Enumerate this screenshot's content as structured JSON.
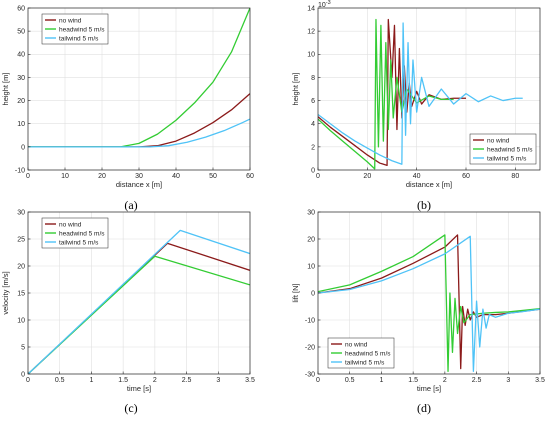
{
  "colors": {
    "no_wind": "#8B1A1A",
    "headwind": "#33CC33",
    "tailwind": "#4FC3F7",
    "grid": "#E0E0E0",
    "axis": "#262626"
  },
  "chart_data": [
    {
      "panel": "(a)",
      "type": "line",
      "xlabel": "distance x [m]",
      "ylabel": "height [m]",
      "xlim": [
        0,
        60
      ],
      "ylim": [
        -10,
        60
      ],
      "xticks": [
        0,
        10,
        20,
        30,
        40,
        50,
        60
      ],
      "yticks": [
        -10,
        0,
        10,
        20,
        30,
        40,
        50,
        60
      ],
      "grid": true,
      "legend": "top-left",
      "series": [
        {
          "name": "no wind",
          "x": [
            0,
            30,
            35,
            40,
            45,
            50,
            55,
            60
          ],
          "y": [
            0,
            0,
            0.5,
            2.5,
            6,
            10.5,
            16,
            23
          ]
        },
        {
          "name": "headwind 5 m/s",
          "x": [
            0,
            25,
            30,
            35,
            40,
            45,
            50,
            55,
            60
          ],
          "y": [
            0,
            0,
            1.5,
            5.5,
            11.5,
            19,
            28,
            41,
            60
          ]
        },
        {
          "name": "tailwind 5 m/s",
          "x": [
            0,
            33,
            38,
            43,
            48,
            53,
            58,
            60
          ],
          "y": [
            0,
            0,
            0.5,
            2,
            4.2,
            7,
            10.5,
            12
          ]
        }
      ]
    },
    {
      "panel": "(b)",
      "type": "line",
      "xlabel": "distance x [m]",
      "ylabel": "height [m]",
      "exponent_label": "10",
      "exponent_power": "-3",
      "xlim": [
        0,
        90
      ],
      "ylim": [
        0,
        14
      ],
      "xticks": [
        0,
        20,
        40,
        60,
        80
      ],
      "yticks": [
        0,
        2,
        4,
        6,
        8,
        10,
        12,
        14
      ],
      "grid": true,
      "legend": "bottom-right",
      "series": [
        {
          "name": "no wind",
          "x": [
            0,
            5,
            10,
            15,
            20,
            25,
            28,
            28.5,
            30,
            31,
            32,
            33,
            34,
            35,
            36,
            37,
            38,
            40,
            42,
            45,
            50,
            55,
            60
          ],
          "y": [
            4.6,
            3.7,
            2.9,
            2.1,
            1.3,
            0.6,
            0.4,
            13,
            8,
            12.5,
            3.5,
            10.5,
            4.5,
            9,
            5,
            7.5,
            5.5,
            6.8,
            5.7,
            6.5,
            6.1,
            6.2,
            6.2
          ]
        },
        {
          "name": "headwind 5 m/s",
          "x": [
            0,
            5,
            10,
            15,
            20,
            23,
            23.5,
            24.5,
            25.5,
            26.5,
            27.5,
            28.5,
            29.5,
            30.5,
            32,
            34,
            36,
            40,
            45,
            50,
            55
          ],
          "y": [
            4.4,
            3.4,
            2.5,
            1.6,
            0.7,
            0.1,
            13,
            2,
            12.5,
            2.5,
            11,
            3.5,
            9.5,
            4.5,
            8,
            5,
            7,
            5.8,
            6.4,
            6.1,
            6.1
          ]
        },
        {
          "name": "tailwind 5 m/s",
          "x": [
            0,
            5,
            10,
            15,
            20,
            25,
            30,
            34,
            34.5,
            35.5,
            36.5,
            37.5,
            38.5,
            40,
            42,
            45,
            50,
            55,
            60,
            65,
            70,
            75,
            80,
            83
          ],
          "y": [
            4.8,
            4.0,
            3.2,
            2.5,
            1.9,
            1.3,
            0.8,
            0.5,
            12.7,
            3,
            11,
            4,
            9.5,
            5,
            8,
            5.5,
            7,
            5.7,
            6.6,
            5.9,
            6.4,
            6.0,
            6.2,
            6.2
          ]
        }
      ]
    },
    {
      "panel": "(c)",
      "type": "line",
      "xlabel": "time [s]",
      "ylabel": "velocity [m/s]",
      "xlim": [
        0,
        3.5
      ],
      "ylim": [
        0,
        30
      ],
      "xticks": [
        0,
        0.5,
        1,
        1.5,
        2,
        2.5,
        3,
        3.5
      ],
      "yticks": [
        0,
        5,
        10,
        15,
        20,
        25,
        30
      ],
      "grid": true,
      "legend": "top-left",
      "series": [
        {
          "name": "no wind",
          "x": [
            0,
            2.2,
            3.5
          ],
          "y": [
            0,
            24.2,
            19.2
          ]
        },
        {
          "name": "headwind 5 m/s",
          "x": [
            0,
            2.0,
            3.5
          ],
          "y": [
            0,
            21.8,
            16.5
          ]
        },
        {
          "name": "tailwind 5 m/s",
          "x": [
            0,
            2.4,
            3.5
          ],
          "y": [
            0,
            26.6,
            22.3
          ]
        }
      ]
    },
    {
      "panel": "(d)",
      "type": "line",
      "xlabel": "time [s]",
      "ylabel": "lift [N]",
      "xlim": [
        0,
        3.5
      ],
      "ylim": [
        -30,
        30
      ],
      "xticks": [
        0,
        0.5,
        1,
        1.5,
        2,
        2.5,
        3,
        3.5
      ],
      "yticks": [
        -30,
        -20,
        -10,
        0,
        10,
        20,
        30
      ],
      "grid": true,
      "legend": "bottom-left",
      "series": [
        {
          "name": "no wind",
          "x": [
            0,
            0.5,
            1.0,
            1.5,
            2.0,
            2.2,
            2.25,
            2.28,
            2.32,
            2.36,
            2.4,
            2.45,
            2.5,
            2.6,
            2.8,
            3.0,
            3.5
          ],
          "y": [
            0,
            1.6,
            5.5,
            11,
            17,
            21.5,
            -28,
            -5,
            -12,
            -6,
            -10,
            -7,
            -9,
            -8,
            -8,
            -7.5,
            -6
          ]
        },
        {
          "name": "headwind 5 m/s",
          "x": [
            0,
            0.5,
            1.0,
            1.5,
            2.0,
            2.05,
            2.08,
            2.12,
            2.16,
            2.2,
            2.25,
            2.3,
            2.4,
            2.6,
            2.8,
            3.0,
            3.5
          ],
          "y": [
            0.5,
            3,
            8,
            13.5,
            21.5,
            -29,
            0,
            -22,
            -2,
            -15,
            -5,
            -11,
            -8,
            -7.5,
            -7.2,
            -7,
            -5.8
          ]
        },
        {
          "name": "tailwind 5 m/s",
          "x": [
            0,
            0.5,
            1.0,
            1.5,
            2.0,
            2.4,
            2.45,
            2.5,
            2.55,
            2.6,
            2.65,
            2.7,
            2.8,
            3.0,
            3.2,
            3.5
          ],
          "y": [
            0,
            1.3,
            4.5,
            9,
            14.5,
            21,
            -29,
            -3,
            -20,
            -6,
            -13,
            -8,
            -9,
            -7.5,
            -7,
            -6
          ]
        }
      ]
    }
  ],
  "captions": [
    "(a)",
    "(b)",
    "(c)",
    "(d)"
  ]
}
